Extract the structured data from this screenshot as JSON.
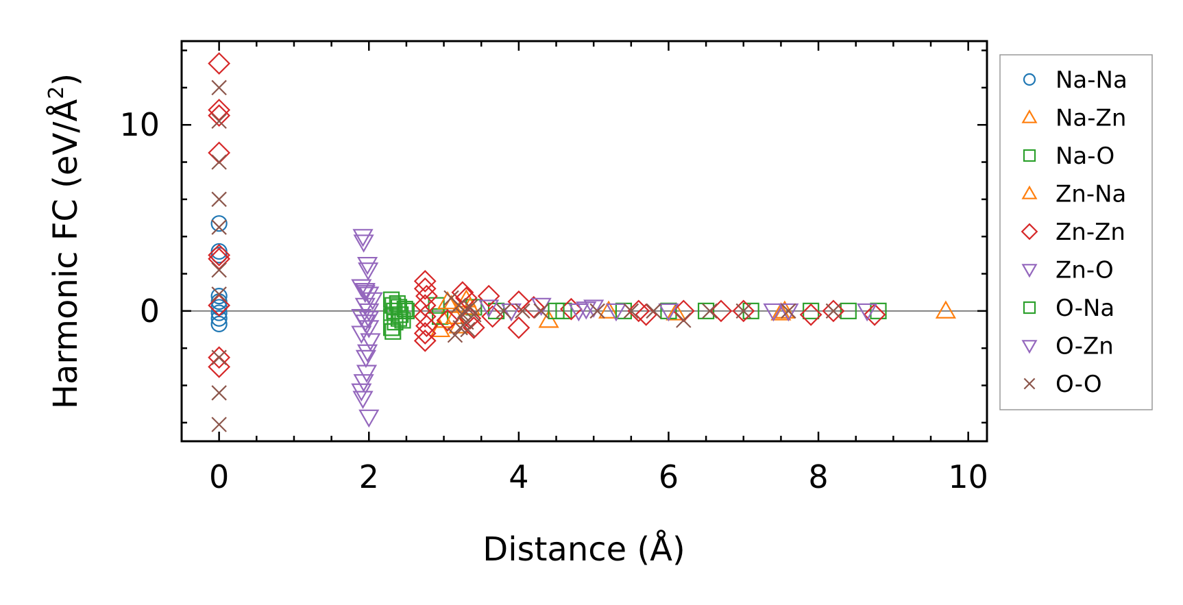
{
  "chart_data": {
    "type": "scatter",
    "xlabel": "Distance (Å)",
    "ylabel_main": "Harmonic FC (eV/Å",
    "ylabel_sup": "2",
    "ylabel_close": ")",
    "xlim": [
      -0.5,
      10.25
    ],
    "ylim": [
      -7,
      14.5
    ],
    "x_ticks": [
      0,
      2,
      4,
      6,
      8,
      10
    ],
    "x_tick_labels": [
      "0",
      "2",
      "4",
      "6",
      "8",
      "10"
    ],
    "y_ticks": [
      0,
      10
    ],
    "y_tick_labels": [
      "0",
      "10"
    ],
    "x_minor_step": 0.5,
    "y_minor_step": 2,
    "zero_line": true,
    "legend_position": "outside-right",
    "series": [
      {
        "name": "Na-Na",
        "marker": "circle",
        "color": "#1f77b4",
        "points": [
          [
            0,
            4.7
          ],
          [
            0,
            3.2
          ],
          [
            0,
            3.0
          ],
          [
            0,
            0.8
          ],
          [
            0,
            0.5
          ],
          [
            0,
            0.2
          ],
          [
            0,
            -0.1
          ],
          [
            0,
            -0.4
          ],
          [
            0,
            -0.7
          ]
        ]
      },
      {
        "name": "Na-Zn",
        "marker": "triangle-up",
        "color": "#ff7f0e",
        "points": [
          [
            2.95,
            -1.0
          ],
          [
            3.0,
            -0.5
          ],
          [
            3.1,
            0.3
          ],
          [
            3.2,
            -0.8
          ],
          [
            3.3,
            0.6
          ],
          [
            4.4,
            -0.5
          ],
          [
            5.2,
            0.0
          ],
          [
            6.1,
            -0.1
          ],
          [
            7.5,
            -0.1
          ],
          [
            9.7,
            0.0
          ]
        ]
      },
      {
        "name": "Na-O",
        "marker": "square",
        "color": "#2ca02c",
        "points": [
          [
            2.3,
            0.6
          ],
          [
            2.32,
            0.3
          ],
          [
            2.34,
            0.0
          ],
          [
            2.3,
            -0.3
          ],
          [
            2.35,
            -0.6
          ],
          [
            2.3,
            -0.9
          ],
          [
            2.32,
            -1.1
          ],
          [
            2.4,
            0.2
          ],
          [
            2.42,
            -0.2
          ],
          [
            2.45,
            -0.5
          ],
          [
            2.5,
            0.0
          ],
          [
            2.9,
            0.3
          ],
          [
            2.95,
            -0.3
          ],
          [
            3.4,
            0.2
          ],
          [
            3.7,
            0.0
          ],
          [
            4.6,
            0.0
          ],
          [
            5.4,
            0.0
          ],
          [
            6.0,
            0.0
          ],
          [
            6.5,
            0.0
          ],
          [
            7.1,
            0.0
          ],
          [
            7.9,
            0.0
          ],
          [
            8.4,
            0.0
          ],
          [
            8.8,
            0.0
          ]
        ]
      },
      {
        "name": "Zn-Na",
        "marker": "triangle-up",
        "color": "#ff7f0e",
        "points": [
          [
            3.05,
            0.5
          ],
          [
            3.15,
            -0.3
          ],
          [
            3.35,
            0.2
          ],
          [
            7.55,
            0.0
          ]
        ]
      },
      {
        "name": "Zn-Zn",
        "marker": "diamond",
        "color": "#d62728",
        "points": [
          [
            0,
            13.3
          ],
          [
            0,
            10.8
          ],
          [
            0,
            10.5
          ],
          [
            0,
            8.5
          ],
          [
            0,
            3.0
          ],
          [
            0,
            2.8
          ],
          [
            0,
            0.3
          ],
          [
            0,
            -2.5
          ],
          [
            0,
            -3.0
          ],
          [
            2.75,
            1.6
          ],
          [
            2.75,
            1.2
          ],
          [
            2.77,
            0.8
          ],
          [
            2.75,
            0.3
          ],
          [
            2.75,
            -0.3
          ],
          [
            2.77,
            -0.8
          ],
          [
            2.75,
            -1.2
          ],
          [
            2.75,
            -1.6
          ],
          [
            3.05,
            -0.5
          ],
          [
            3.25,
            1.0
          ],
          [
            3.3,
            0.7
          ],
          [
            3.35,
            -0.4
          ],
          [
            3.4,
            -0.9
          ],
          [
            3.6,
            0.8
          ],
          [
            3.65,
            -0.3
          ],
          [
            4.0,
            0.5
          ],
          [
            4.0,
            -0.9
          ],
          [
            4.2,
            0.2
          ],
          [
            4.7,
            0.1
          ],
          [
            5.6,
            0.0
          ],
          [
            5.7,
            -0.2
          ],
          [
            6.2,
            0.0
          ],
          [
            6.7,
            0.0
          ],
          [
            7.0,
            0.0
          ],
          [
            7.9,
            -0.2
          ],
          [
            8.2,
            0.0
          ],
          [
            8.75,
            -0.2
          ]
        ]
      },
      {
        "name": "Zn-O",
        "marker": "triangle-down",
        "color": "#9467bd",
        "points": [
          [
            1.92,
            4.0
          ],
          [
            1.93,
            3.7
          ],
          [
            1.98,
            2.5
          ],
          [
            1.99,
            2.2
          ],
          [
            1.9,
            1.3
          ],
          [
            1.95,
            1.1
          ],
          [
            2.0,
            0.9
          ],
          [
            2.05,
            0.6
          ],
          [
            1.95,
            0.3
          ],
          [
            2.0,
            0.0
          ],
          [
            1.9,
            -0.3
          ],
          [
            1.95,
            -0.6
          ],
          [
            2.0,
            -0.9
          ],
          [
            1.9,
            -1.2
          ],
          [
            2.02,
            -1.6
          ],
          [
            1.98,
            -2.2
          ],
          [
            1.96,
            -2.5
          ],
          [
            1.97,
            -3.3
          ],
          [
            1.93,
            -3.8
          ],
          [
            1.9,
            -4.3
          ],
          [
            1.92,
            -4.7
          ],
          [
            2.0,
            -5.7
          ],
          [
            3.6,
            0.2
          ],
          [
            3.9,
            0.0
          ],
          [
            4.3,
            0.3
          ],
          [
            4.8,
            0.0
          ],
          [
            5.0,
            0.2
          ],
          [
            5.3,
            0.0
          ],
          [
            6.0,
            0.0
          ],
          [
            7.4,
            0.0
          ],
          [
            7.6,
            0.0
          ],
          [
            8.65,
            0.0
          ]
        ]
      },
      {
        "name": "O-Na",
        "marker": "square",
        "color": "#2ca02c",
        "points": [
          [
            2.38,
            0.4
          ],
          [
            2.4,
            -0.4
          ],
          [
            2.48,
            0.1
          ],
          [
            4.5,
            0.0
          ]
        ]
      },
      {
        "name": "O-Zn",
        "marker": "triangle-down",
        "color": "#9467bd",
        "points": [
          [
            1.95,
            1.0
          ],
          [
            2.0,
            -0.4
          ],
          [
            4.9,
            0.1
          ]
        ]
      },
      {
        "name": "O-O",
        "marker": "x",
        "color": "#8c564b",
        "points": [
          [
            0,
            12.0
          ],
          [
            0,
            10.2
          ],
          [
            0,
            8.0
          ],
          [
            0,
            6.0
          ],
          [
            0,
            4.5
          ],
          [
            0,
            2.2
          ],
          [
            0,
            0.9
          ],
          [
            0,
            -2.5
          ],
          [
            0,
            -4.4
          ],
          [
            0,
            -6.1
          ],
          [
            3.1,
            0.7
          ],
          [
            3.2,
            0.3
          ],
          [
            3.25,
            -0.2
          ],
          [
            3.3,
            -0.6
          ],
          [
            3.35,
            0.2
          ],
          [
            3.28,
            0.0
          ],
          [
            3.22,
            -0.9
          ],
          [
            3.15,
            -1.3
          ],
          [
            3.32,
            -1.0
          ],
          [
            3.4,
            -0.2
          ],
          [
            3.8,
            0.0
          ],
          [
            4.05,
            0.0
          ],
          [
            4.3,
            0.0
          ],
          [
            5.05,
            0.0
          ],
          [
            5.5,
            0.0
          ],
          [
            5.8,
            0.0
          ],
          [
            6.2,
            -0.5
          ],
          [
            6.55,
            0.0
          ],
          [
            7.0,
            0.0
          ],
          [
            7.6,
            0.0
          ],
          [
            8.2,
            0.0
          ]
        ]
      }
    ]
  }
}
